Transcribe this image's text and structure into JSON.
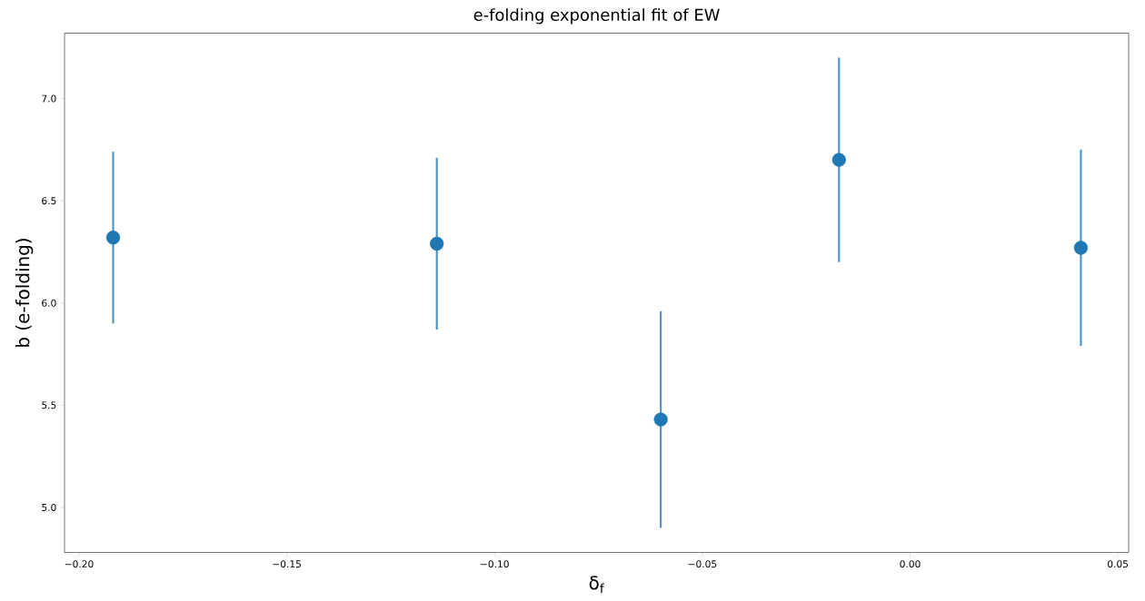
{
  "chart_data": {
    "type": "scatter",
    "title": "e-folding exponential fit of EW",
    "xlabel": "δ$_{f}$",
    "ylabel": "b (e-folding)",
    "x": [
      -0.1918,
      -0.1139,
      -0.06,
      -0.0171,
      0.0411
    ],
    "values": [
      6.32,
      6.29,
      5.43,
      6.7,
      6.27
    ],
    "errors": [
      0.42,
      0.42,
      0.53,
      0.5,
      0.48
    ],
    "color": "#1f77b4",
    "marker": "circle",
    "xlim": [
      -0.2035,
      0.0526
    ],
    "ylim": [
      4.78,
      7.32
    ],
    "xticks": [
      {
        "value": -0.2,
        "label": "−0.20"
      },
      {
        "value": -0.15,
        "label": "−0.15"
      },
      {
        "value": -0.1,
        "label": "−0.10"
      },
      {
        "value": -0.05,
        "label": "−0.05"
      },
      {
        "value": 0,
        "label": "0.00"
      },
      {
        "value": 0.05,
        "label": "0.05"
      }
    ],
    "yticks": [
      {
        "value": 5,
        "label": "5.0"
      },
      {
        "value": 5.5,
        "label": "5.5"
      },
      {
        "value": 6,
        "label": "6.0"
      },
      {
        "value": 6.5,
        "label": "6.5"
      },
      {
        "value": 7,
        "label": "7.0"
      }
    ],
    "grid": false
  }
}
